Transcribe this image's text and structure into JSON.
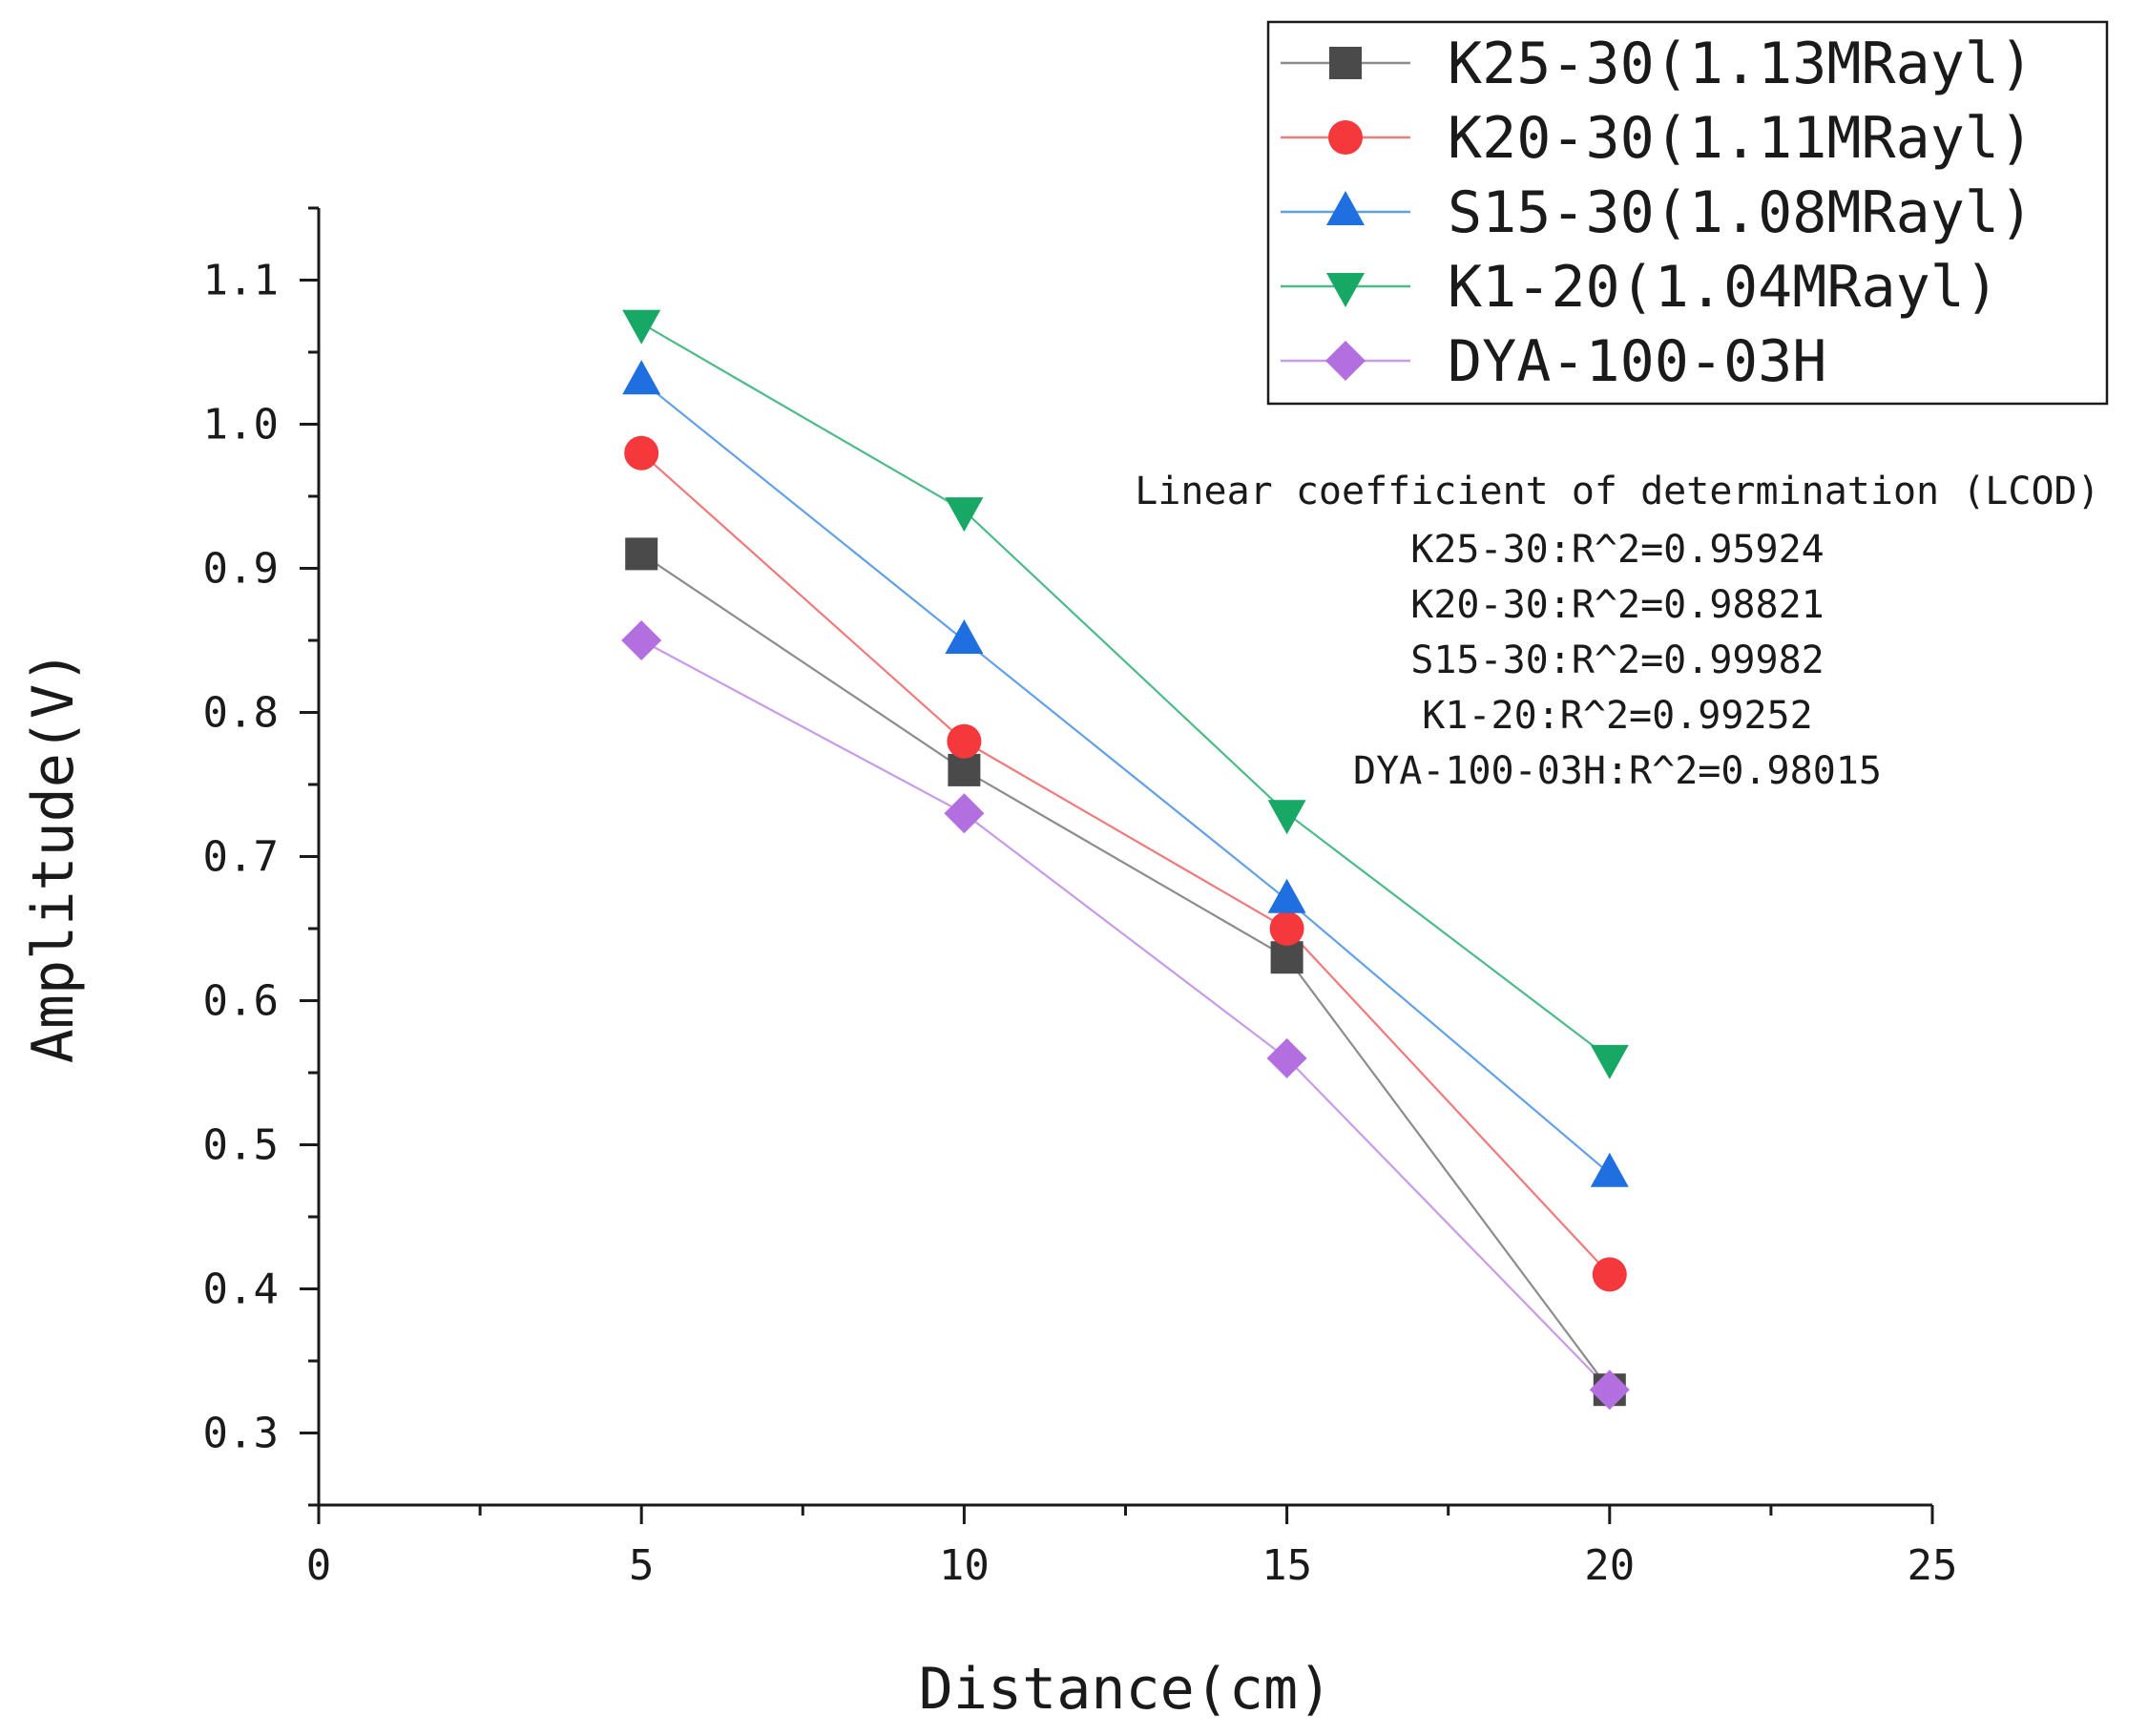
{
  "chart_data": {
    "type": "line",
    "title": "",
    "xlabel": "Distance(cm)",
    "ylabel": "Amplitude(V)",
    "xlim": [
      0,
      25
    ],
    "ylim": [
      0.25,
      1.15
    ],
    "x_ticks": [
      "0",
      "5",
      "10",
      "15",
      "20",
      "25"
    ],
    "y_ticks": [
      "0.3",
      "0.4",
      "0.5",
      "0.6",
      "0.7",
      "0.8",
      "0.9",
      "1.0",
      "1.1"
    ],
    "grid": false,
    "legend_position": "top-right",
    "x": [
      5,
      10,
      15,
      20
    ],
    "series": [
      {
        "name": "K25-30(1.13MRayl)",
        "values": [
          0.91,
          0.76,
          0.63,
          0.33
        ],
        "color": "#4a4a4a",
        "line_color": "#8c8c8c",
        "marker": "square"
      },
      {
        "name": "K20-30(1.11MRayl)",
        "values": [
          0.98,
          0.78,
          0.65,
          0.41
        ],
        "color": "#f5383b",
        "line_color": "#f07a7a",
        "marker": "circle"
      },
      {
        "name": "S15-30(1.08MRayl)",
        "values": [
          1.03,
          0.85,
          0.67,
          0.48
        ],
        "color": "#1f6fe0",
        "line_color": "#62a0e8",
        "marker": "triangle-up"
      },
      {
        "name": "K1-20(1.04MRayl)",
        "values": [
          1.07,
          0.94,
          0.73,
          0.56
        ],
        "color": "#16a864",
        "line_color": "#4cbb88",
        "marker": "triangle-down"
      },
      {
        "name": "DYA-100-03H",
        "values": [
          0.85,
          0.73,
          0.56,
          0.33
        ],
        "color": "#b36fe0",
        "line_color": "#c89ae8",
        "marker": "diamond"
      }
    ],
    "annotation": {
      "title": "Linear coefficient of determination (LCOD)",
      "lines": [
        "K25-30:R^2=0.95924",
        "K20-30:R^2=0.98821",
        "S15-30:R^2=0.99982",
        "K1-20:R^2=0.99252",
        "DYA-100-03H:R^2=0.98015"
      ]
    }
  }
}
